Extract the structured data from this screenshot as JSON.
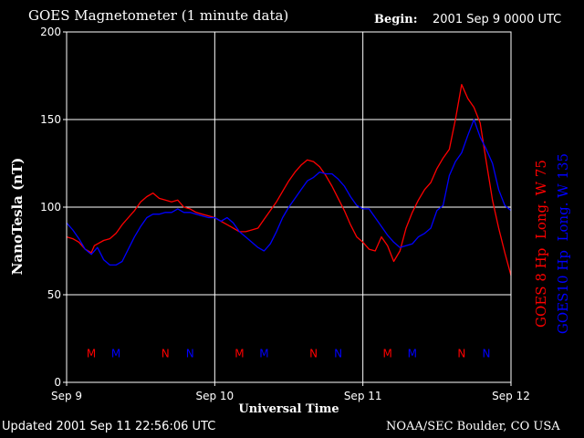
{
  "header": {
    "title": "GOES Magnetometer (1 minute data)",
    "begin_label": "Begin:",
    "begin_value": "2001 Sep 9 0000 UTC"
  },
  "footer": {
    "updated": "Updated 2001 Sep 11 22:56:06 UTC",
    "credit": "NOAA/SEC Boulder, CO USA"
  },
  "chart_data": {
    "type": "line",
    "title": "GOES Magnetometer (1 minute data)",
    "xlabel": "Universal Time",
    "ylabel": "NanoTesla (nT)",
    "x_unit": "hours since 2001 Sep 9 0000 UTC",
    "xlim": [
      0,
      72
    ],
    "ylim": [
      0,
      200
    ],
    "yticks": [
      0,
      50,
      100,
      150,
      200
    ],
    "xticks": [
      {
        "x": 0,
        "label": "Sep 9"
      },
      {
        "x": 24,
        "label": "Sep 10"
      },
      {
        "x": 48,
        "label": "Sep 11"
      },
      {
        "x": 72,
        "label": "Sep 12"
      }
    ],
    "grid": true,
    "background": "#000000",
    "axis_color": "#ffffff",
    "series": [
      {
        "name": "GOES 8 Hp  Long. W 75",
        "color": "#ff0000",
        "points": [
          [
            0,
            83
          ],
          [
            1,
            82
          ],
          [
            2,
            80
          ],
          [
            3,
            76
          ],
          [
            4,
            74
          ],
          [
            4.5,
            78
          ],
          [
            5,
            79
          ],
          [
            6,
            81
          ],
          [
            7,
            82
          ],
          [
            8,
            85
          ],
          [
            9,
            90
          ],
          [
            10,
            94
          ],
          [
            11,
            98
          ],
          [
            12,
            103
          ],
          [
            13,
            106
          ],
          [
            14,
            108
          ],
          [
            15,
            105
          ],
          [
            16,
            104
          ],
          [
            17,
            103
          ],
          [
            18,
            104
          ],
          [
            19,
            100
          ],
          [
            20,
            99
          ],
          [
            21,
            97
          ],
          [
            22,
            96
          ],
          [
            23,
            95
          ],
          [
            24,
            94
          ],
          [
            25,
            92
          ],
          [
            26,
            90
          ],
          [
            27,
            88
          ],
          [
            28,
            86
          ],
          [
            29,
            86
          ],
          [
            30,
            87
          ],
          [
            31,
            88
          ],
          [
            32,
            93
          ],
          [
            33,
            98
          ],
          [
            34,
            103
          ],
          [
            35,
            109
          ],
          [
            36,
            115
          ],
          [
            37,
            120
          ],
          [
            38,
            124
          ],
          [
            39,
            127
          ],
          [
            40,
            126
          ],
          [
            41,
            123
          ],
          [
            42,
            118
          ],
          [
            43,
            112
          ],
          [
            44,
            105
          ],
          [
            45,
            98
          ],
          [
            46,
            90
          ],
          [
            47,
            83
          ],
          [
            48,
            80
          ],
          [
            49,
            76
          ],
          [
            50,
            75
          ],
          [
            51,
            83
          ],
          [
            52,
            78
          ],
          [
            53,
            69
          ],
          [
            54,
            75
          ],
          [
            55,
            88
          ],
          [
            56,
            97
          ],
          [
            57,
            104
          ],
          [
            58,
            110
          ],
          [
            59,
            114
          ],
          [
            60,
            122
          ],
          [
            61,
            128
          ],
          [
            62,
            133
          ],
          [
            63,
            150
          ],
          [
            64,
            170
          ],
          [
            65,
            162
          ],
          [
            66,
            157
          ],
          [
            67,
            148
          ],
          [
            68,
            126
          ],
          [
            69,
            104
          ],
          [
            70,
            88
          ],
          [
            71,
            74
          ],
          [
            72,
            61
          ]
        ]
      },
      {
        "name": "GOES10 Hp  Long. W 135",
        "color": "#0000ff",
        "points": [
          [
            0,
            91
          ],
          [
            1,
            87
          ],
          [
            2,
            82
          ],
          [
            3,
            76
          ],
          [
            4,
            73
          ],
          [
            5,
            77
          ],
          [
            6,
            70
          ],
          [
            7,
            67
          ],
          [
            8,
            67
          ],
          [
            9,
            69
          ],
          [
            10,
            76
          ],
          [
            11,
            83
          ],
          [
            12,
            89
          ],
          [
            13,
            94
          ],
          [
            14,
            96
          ],
          [
            15,
            96
          ],
          [
            16,
            97
          ],
          [
            17,
            97
          ],
          [
            18,
            99
          ],
          [
            19,
            97
          ],
          [
            20,
            97
          ],
          [
            21,
            96
          ],
          [
            22,
            95
          ],
          [
            23,
            94
          ],
          [
            24,
            94
          ],
          [
            25,
            92
          ],
          [
            26,
            94
          ],
          [
            27,
            91
          ],
          [
            28,
            86
          ],
          [
            29,
            83
          ],
          [
            30,
            80
          ],
          [
            31,
            77
          ],
          [
            32,
            75
          ],
          [
            33,
            79
          ],
          [
            34,
            86
          ],
          [
            35,
            94
          ],
          [
            36,
            100
          ],
          [
            37,
            105
          ],
          [
            38,
            110
          ],
          [
            39,
            115
          ],
          [
            40,
            117
          ],
          [
            41,
            120
          ],
          [
            42,
            119
          ],
          [
            43,
            119
          ],
          [
            44,
            116
          ],
          [
            45,
            112
          ],
          [
            46,
            106
          ],
          [
            47,
            101
          ],
          [
            48,
            99
          ],
          [
            49,
            99
          ],
          [
            50,
            94
          ],
          [
            51,
            89
          ],
          [
            52,
            84
          ],
          [
            53,
            80
          ],
          [
            54,
            77
          ],
          [
            55,
            78
          ],
          [
            56,
            79
          ],
          [
            57,
            83
          ],
          [
            58,
            85
          ],
          [
            59,
            88
          ],
          [
            60,
            98
          ],
          [
            61,
            101
          ],
          [
            62,
            118
          ],
          [
            63,
            126
          ],
          [
            64,
            131
          ],
          [
            65,
            141
          ],
          [
            66,
            150
          ],
          [
            67,
            140
          ],
          [
            68,
            133
          ],
          [
            69,
            125
          ],
          [
            70,
            110
          ],
          [
            71,
            101
          ],
          [
            72,
            98
          ]
        ]
      }
    ],
    "legend": [
      {
        "text": "GOES 8 Hp  Long. W 75",
        "color": "#ff0000"
      },
      {
        "text": "GOES10 Hp  Long. W 135",
        "color": "#0000ff"
      }
    ],
    "legend_position": "right, vertical",
    "annotations": [
      {
        "text": "M",
        "x": 4,
        "color": "#ff0000"
      },
      {
        "text": "M",
        "x": 8,
        "color": "#0000ff"
      },
      {
        "text": "N",
        "x": 16,
        "color": "#ff0000"
      },
      {
        "text": "N",
        "x": 20,
        "color": "#0000ff"
      },
      {
        "text": "M",
        "x": 28,
        "color": "#ff0000"
      },
      {
        "text": "M",
        "x": 32,
        "color": "#0000ff"
      },
      {
        "text": "N",
        "x": 40,
        "color": "#ff0000"
      },
      {
        "text": "N",
        "x": 44,
        "color": "#0000ff"
      },
      {
        "text": "M",
        "x": 52,
        "color": "#ff0000"
      },
      {
        "text": "M",
        "x": 56,
        "color": "#0000ff"
      },
      {
        "text": "N",
        "x": 64,
        "color": "#ff0000"
      },
      {
        "text": "N",
        "x": 68,
        "color": "#0000ff"
      }
    ],
    "annotation_y": 17
  }
}
